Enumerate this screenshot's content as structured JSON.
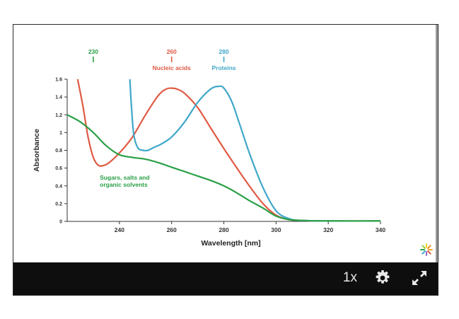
{
  "controls": {
    "speed_label": "1x",
    "settings_icon": "gear-icon",
    "fullscreen_icon": "expand-icon"
  },
  "chart_data": {
    "type": "line",
    "xlabel": "Wavelength [nm]",
    "ylabel": "Absorbance",
    "xlim": [
      220,
      340
    ],
    "ylim": [
      0,
      1.6
    ],
    "x_ticks": [
      "240",
      "260",
      "280",
      "300",
      "320",
      "340"
    ],
    "y_ticks": [
      "0",
      "0.2",
      "0.4",
      "0.6",
      "0.8",
      "1",
      "1.2",
      "1.4",
      "1.6"
    ],
    "grid": false,
    "series": [
      {
        "name": "Nucleic acids",
        "color": "#e05a44",
        "x": [
          224,
          226,
          228,
          230,
          232,
          234,
          236,
          240,
          245,
          250,
          255,
          258,
          260,
          262,
          265,
          270,
          275,
          280,
          285,
          290,
          295,
          300,
          305,
          310,
          320,
          340
        ],
        "y": [
          1.6,
          1.3,
          0.95,
          0.72,
          0.63,
          0.63,
          0.66,
          0.77,
          0.95,
          1.2,
          1.42,
          1.49,
          1.5,
          1.49,
          1.44,
          1.28,
          1.05,
          0.82,
          0.6,
          0.39,
          0.2,
          0.07,
          0.02,
          0.01,
          0.005,
          0.005
        ]
      },
      {
        "name": "Proteins",
        "color": "#3fa7c9",
        "x": [
          244,
          244.6,
          245.5,
          247,
          249,
          251,
          253,
          256,
          260,
          265,
          270,
          275,
          278,
          280,
          283,
          286,
          290,
          295,
          300,
          305,
          310,
          320,
          340
        ],
        "y": [
          1.6,
          1.3,
          0.98,
          0.83,
          0.8,
          0.8,
          0.83,
          0.87,
          0.95,
          1.12,
          1.34,
          1.49,
          1.52,
          1.5,
          1.35,
          1.1,
          0.75,
          0.38,
          0.12,
          0.03,
          0.01,
          0.005,
          0.005
        ]
      },
      {
        "name": "Sugars, salts and organic solvents",
        "color": "#2aa047",
        "x": [
          220,
          225,
          230,
          235,
          240,
          245,
          250,
          255,
          260,
          265,
          270,
          275,
          280,
          285,
          290,
          295,
          300,
          305,
          310,
          320,
          340
        ],
        "y": [
          1.2,
          1.12,
          1.0,
          0.85,
          0.75,
          0.72,
          0.7,
          0.66,
          0.61,
          0.56,
          0.51,
          0.46,
          0.4,
          0.32,
          0.23,
          0.15,
          0.06,
          0.02,
          0.01,
          0.005,
          0.005
        ]
      }
    ],
    "annotations": [
      {
        "value": "230",
        "label": "",
        "x": 230,
        "color": "#2aa047"
      },
      {
        "value": "260",
        "label": "Nucleic acids",
        "x": 260,
        "color": "#e05a44"
      },
      {
        "value": "280",
        "label": "Proteins",
        "x": 280,
        "color": "#3fa7c9"
      }
    ],
    "curve_label": {
      "lines": [
        "Sugars, salts and",
        "organic solvents"
      ],
      "color": "#2aa047"
    }
  }
}
